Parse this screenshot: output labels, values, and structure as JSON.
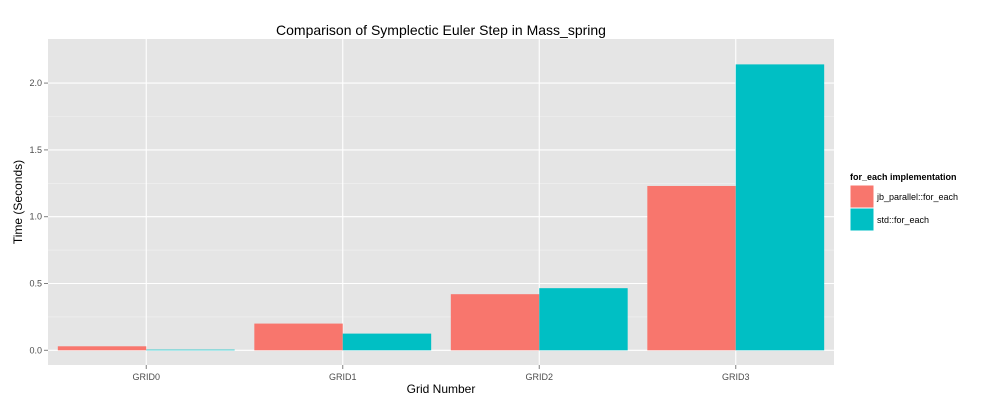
{
  "chart_data": {
    "type": "bar",
    "title": "Comparison of Symplectic Euler Step in Mass_spring",
    "xlabel": "Grid Number",
    "ylabel": "Time (Seconds)",
    "categories": [
      "GRID0",
      "GRID1",
      "GRID2",
      "GRID3"
    ],
    "series": [
      {
        "name": "jb_parallel::for_each",
        "color": "#F8766D",
        "values": [
          0.03,
          0.2,
          0.42,
          1.23
        ]
      },
      {
        "name": "std::for_each",
        "color": "#00BFC4",
        "values": [
          0.005,
          0.125,
          0.465,
          2.14
        ]
      }
    ],
    "ylim": [
      -0.11,
      2.33
    ],
    "yticks": [
      0.0,
      0.5,
      1.0,
      1.5,
      2.0
    ],
    "ytick_labels": [
      "0.0",
      "0.5",
      "1.0",
      "1.5",
      "2.0"
    ],
    "grid": true,
    "legend": {
      "title": "for_each implementation",
      "position": "right"
    },
    "panel_background": "#E5E5E5",
    "grid_color": "#FFFFFF"
  }
}
